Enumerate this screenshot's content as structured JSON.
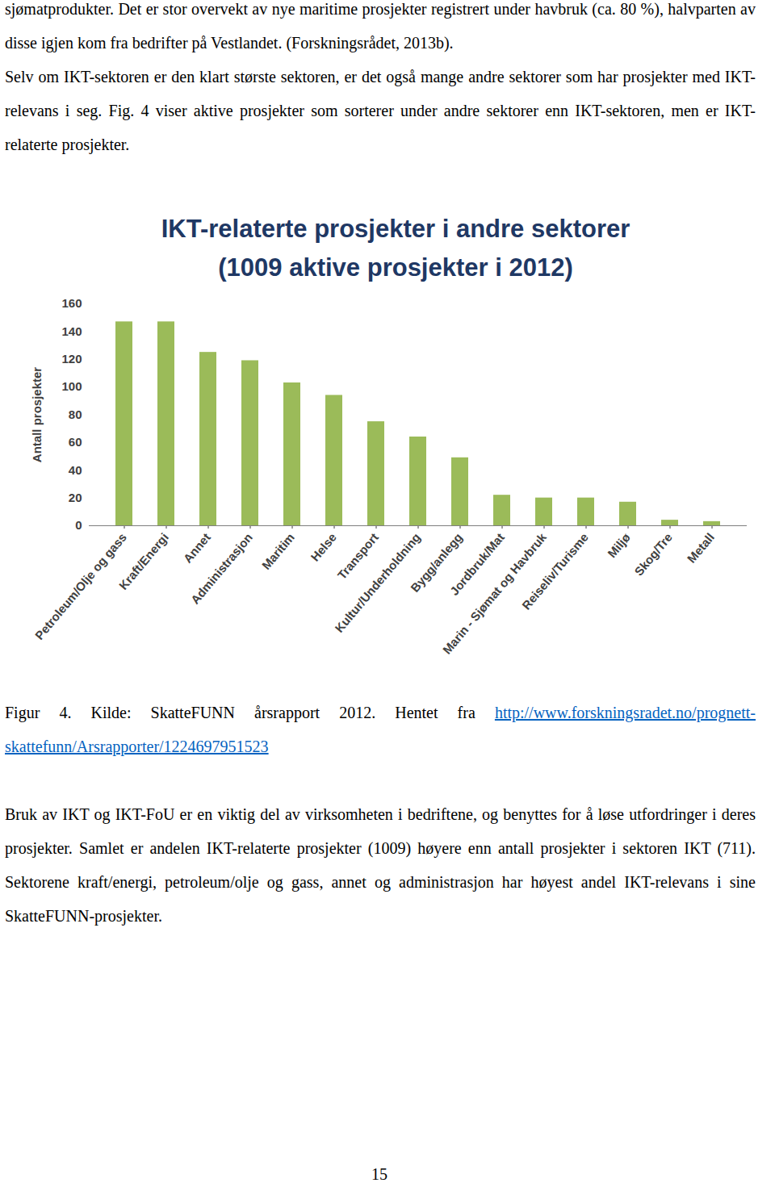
{
  "document": {
    "paragraphs_before": [
      "sjømatprodukter. Det er stor overvekt av nye maritime prosjekter registrert under havbruk (ca. 80 %), halvparten av disse igjen kom fra bedrifter på Vestlandet. (Forskningsrådet, 2013b).",
      "Selv om IKT-sektoren er den klart største sektoren, er det også mange andre sektorer som har prosjekter med IKT-relevans i seg. Fig. 4 viser aktive prosjekter som sorterer under andre sektorer enn IKT-sektoren, men er IKT-relaterte prosjekter."
    ],
    "caption": {
      "text": "Figur 4. Kilde: SkatteFUNN årsrapport 2012. Hentet fra",
      "link": "http://www.forskningsradet.no/prognett-skattefunn/Arsrapporter/1224697951523"
    },
    "paragraphs_after": [
      "Bruk av IKT og IKT-FoU er en viktig del av virksomheten i bedriftene, og benyttes for å løse utfordringer i deres prosjekter. Samlet er andelen IKT-relaterte prosjekter (1009) høyere enn antall prosjekter i sektoren IKT (711). Sektorene kraft/energi, petroleum/olje og gass, annet og administrasjon har høyest andel IKT-relevans i sine SkatteFUNN-prosjekter."
    ],
    "page_number": "15"
  },
  "chart_data": {
    "type": "bar",
    "title": "IKT-relaterte prosjekter i andre sektorer",
    "subtitle": "(1009 aktive prosjekter i 2012)",
    "y_label": "Antall prosjekter",
    "categories": [
      "Petroleum/Olje og gass",
      "Kraft/Energi",
      "Annet",
      "Administrasjon",
      "Maritim",
      "Helse",
      "Transport",
      "Kultur/Underholdning",
      "Bygg/anlegg",
      "Jordbruk/Mat",
      "Marin - Sjømat og Havbruk",
      "Reiseliv/Turisme",
      "Miljø",
      "Skog/Tre",
      "Metall"
    ],
    "values": [
      147,
      147,
      125,
      119,
      103,
      94,
      75,
      64,
      49,
      22,
      20,
      20,
      17,
      4,
      3
    ],
    "color": "#9bbb59",
    "ylim": [
      0,
      160
    ],
    "yticks": [
      0,
      20,
      40,
      60,
      80,
      100,
      120,
      140,
      160
    ],
    "grid": false
  }
}
